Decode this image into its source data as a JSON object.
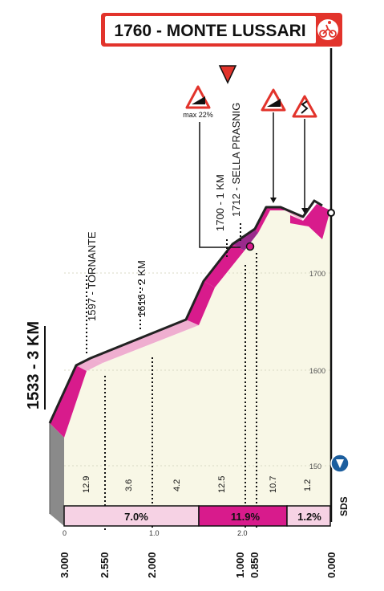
{
  "finish_banner": {
    "label": "1760 - MONTE LUSSARI",
    "badge_icon": "cyclist-icon",
    "accent": "#e2332b"
  },
  "start_label": "1533 - 3 KM",
  "points_of_interest": [
    {
      "label": "1597 - TORNANTE"
    },
    {
      "label": "1616 - 2 KM"
    },
    {
      "label": "1700 - 1 KM"
    },
    {
      "label": "1712 - SELLA PRASNIG"
    }
  ],
  "signs": [
    {
      "icon": "steep-grade-sign-icon",
      "caption": "max 22%"
    },
    {
      "icon": "kom-flag-triangle-icon",
      "caption": ""
    },
    {
      "icon": "steep-grade-sign-icon",
      "caption": ""
    },
    {
      "icon": "curves-sign-icon",
      "caption": ""
    }
  ],
  "altitude_ticks": [
    "1700",
    "1600",
    "150"
  ],
  "segment_gradients": [
    "12.9",
    "3.6",
    "4.2",
    "12.5",
    "10.7",
    "1.2"
  ],
  "average_gradients": [
    "7.0%",
    "11.9%",
    "1.2%"
  ],
  "km_ticks_top": [
    "0",
    "1.0",
    "2.0"
  ],
  "distance_labels": [
    "3.000",
    "2.550",
    "2.000",
    "1.000",
    "0.850",
    "0.000"
  ],
  "sds_label": "SDS",
  "colors": {
    "climb_magenta": "#d81b8c",
    "climb_pink_light": "#efaed0",
    "bar_pink_pale": "#f6d2e4",
    "ground_fill": "#f8f7e6",
    "start_grey": "#8a8a8a",
    "sds_blue": "#1c5e9e"
  }
}
